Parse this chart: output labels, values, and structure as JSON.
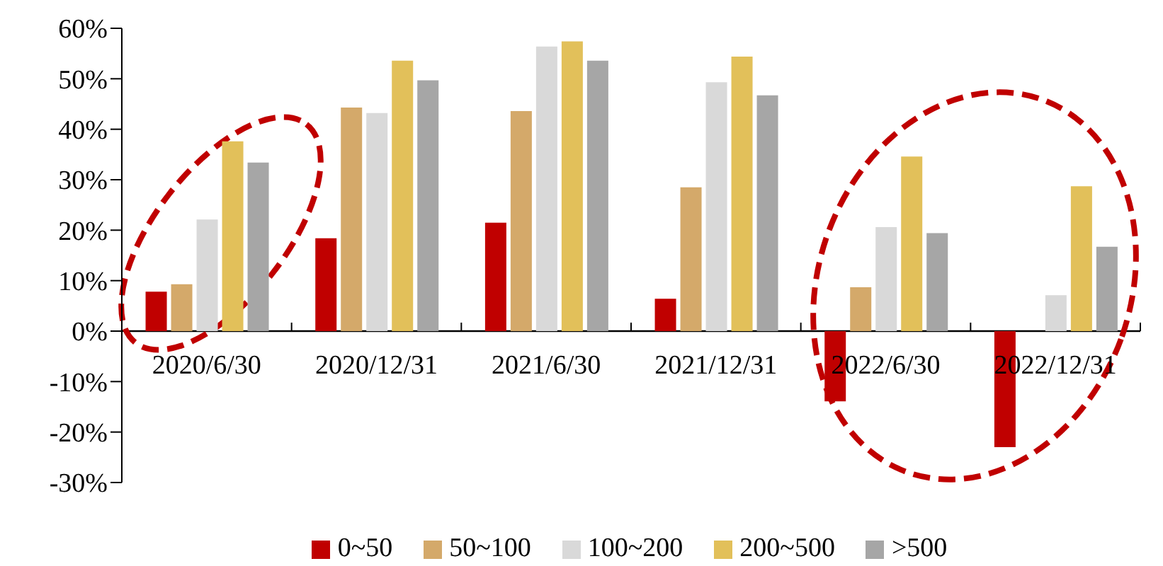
{
  "chart_data": {
    "type": "bar",
    "categories": [
      "2020/6/30",
      "2020/12/31",
      "2021/6/30",
      "2021/12/31",
      "2022/6/30",
      "2022/12/31"
    ],
    "series": [
      {
        "name": "0~50",
        "color": "#c00000",
        "values": [
          7.8,
          18.4,
          21.5,
          6.4,
          -13.9,
          -23.0
        ]
      },
      {
        "name": "50~100",
        "color": "#d4a96a",
        "values": [
          9.3,
          44.3,
          43.6,
          28.5,
          8.7,
          null
        ]
      },
      {
        "name": "100~200",
        "color": "#d9d9d9",
        "values": [
          22.1,
          43.2,
          56.4,
          49.3,
          20.6,
          7.1
        ]
      },
      {
        "name": "200~500",
        "color": "#e2c05a",
        "values": [
          37.6,
          53.6,
          57.4,
          54.4,
          34.6,
          28.7
        ]
      },
      {
        "name": ">500",
        "color": "#a6a6a6",
        "values": [
          33.4,
          49.7,
          53.6,
          46.7,
          19.4,
          16.7
        ]
      }
    ],
    "ylim": [
      -30,
      60
    ],
    "yticks": [
      {
        "value": -30,
        "label": "-30%"
      },
      {
        "value": -20,
        "label": "-20%"
      },
      {
        "value": -10,
        "label": "-10%"
      },
      {
        "value": 0,
        "label": "0%"
      },
      {
        "value": 10,
        "label": "10%"
      },
      {
        "value": 20,
        "label": "20%"
      },
      {
        "value": 30,
        "label": "30%"
      },
      {
        "value": 40,
        "label": "40%"
      },
      {
        "value": 50,
        "label": "50%"
      },
      {
        "value": 60,
        "label": "60%"
      }
    ],
    "grid": false,
    "legend": "bottom"
  }
}
